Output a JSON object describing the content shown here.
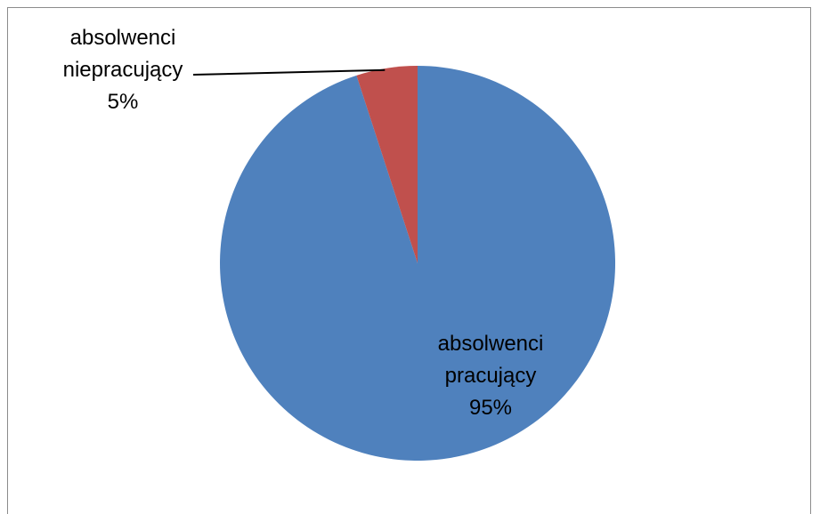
{
  "chart_data": {
    "type": "pie",
    "title": "",
    "slices": [
      {
        "label_lines": [
          "absolwenci",
          "pracujący"
        ],
        "value": 95,
        "percent_label": "95%",
        "color": "#4f81bd"
      },
      {
        "label_lines": [
          "absolwenci",
          "niepracujący"
        ],
        "value": 5,
        "percent_label": "5%",
        "color": "#c0504d"
      }
    ],
    "start_angle_deg": 0,
    "direction": "clockwise",
    "legend": "none"
  }
}
